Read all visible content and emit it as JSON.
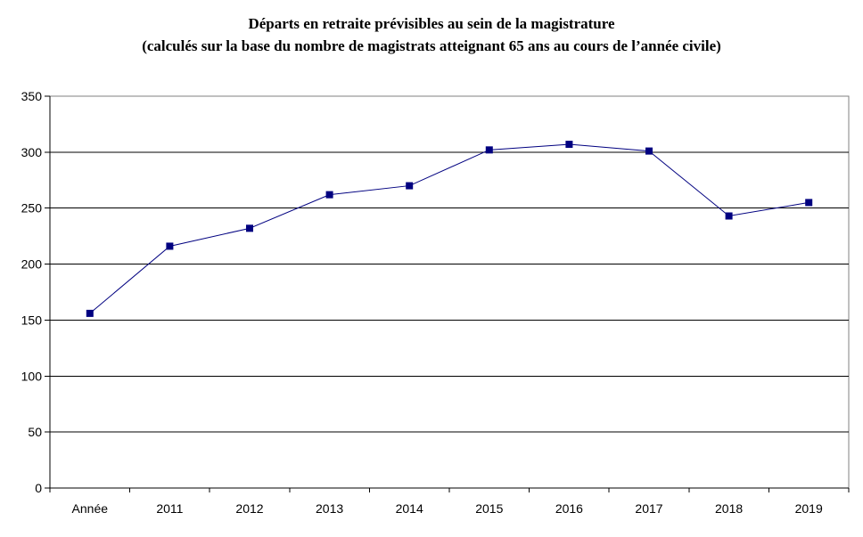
{
  "chart_data": {
    "type": "line",
    "title": "Départs en retraite prévisibles au sein de la magistrature",
    "subtitle": "(calculés sur la base du nombre de magistrats atteignant 65 ans au cours de l’année civile)",
    "categories": [
      "Année",
      "2011",
      "2012",
      "2013",
      "2014",
      "2015",
      "2016",
      "2017",
      "2018",
      "2019"
    ],
    "values": [
      156,
      216,
      232,
      262,
      270,
      302,
      307,
      301,
      243,
      255
    ],
    "xlabel": "",
    "ylabel": "",
    "ylim": [
      0,
      350
    ],
    "yticks": [
      0,
      50,
      100,
      150,
      200,
      250,
      300,
      350
    ],
    "grid": true,
    "legend_position": "none",
    "marker": "square",
    "colors": {
      "line": "#000080",
      "marker": "#000080",
      "gridline": "#000000",
      "axis": "#000000",
      "plot_border": "#808080",
      "background": "#ffffff",
      "text": "#000000"
    }
  }
}
